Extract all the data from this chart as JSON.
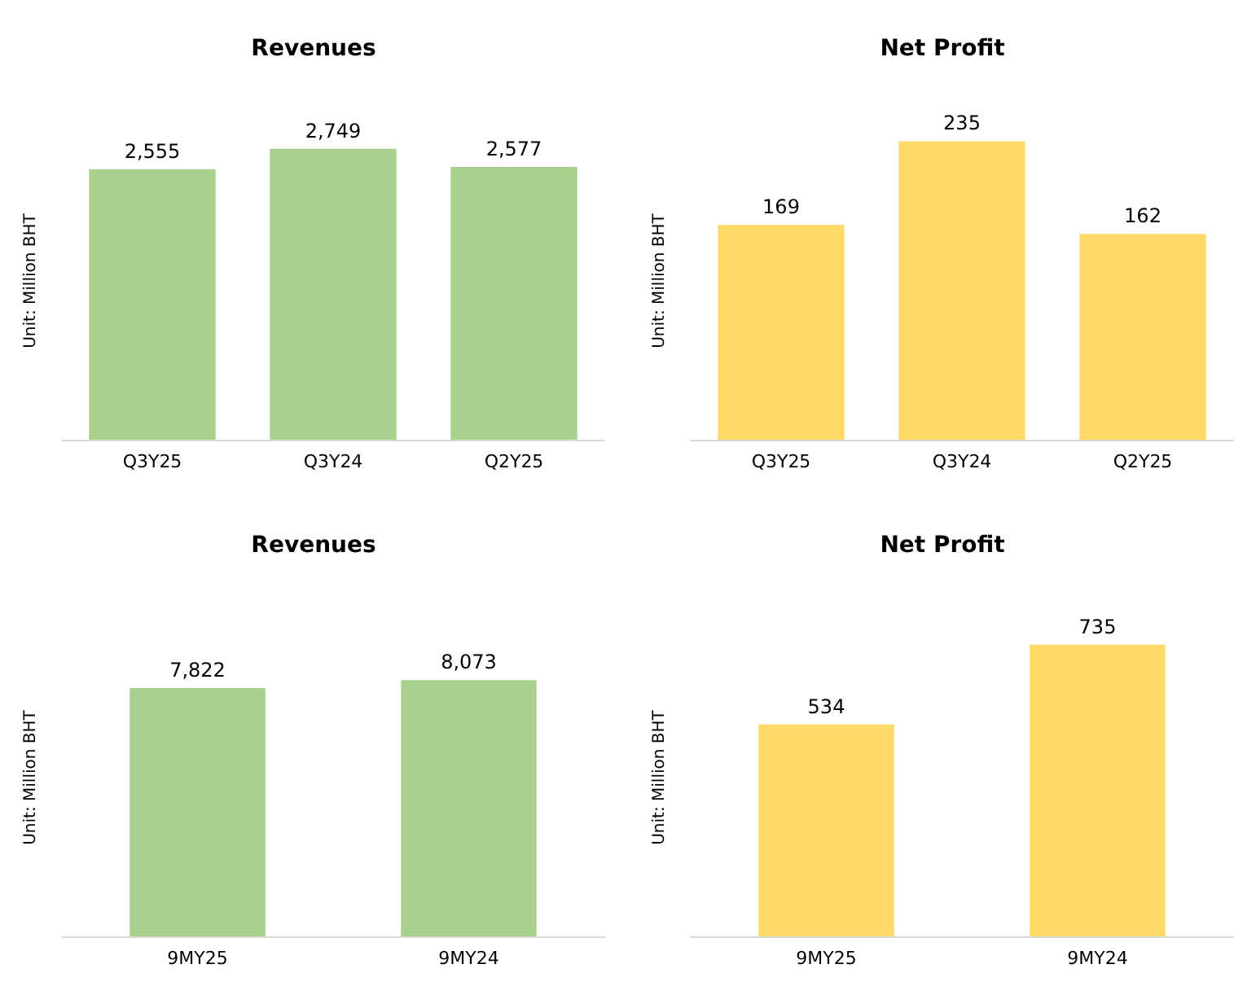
{
  "chart_data": [
    {
      "type": "bar",
      "title": "Revenues",
      "ylabel": "Unit: Million BHT",
      "categories": [
        "Q3Y25",
        "Q3Y24",
        "Q2Y25"
      ],
      "values": [
        2555,
        2749,
        2577
      ],
      "value_labels": [
        "2,555",
        "2,749",
        "2,577"
      ],
      "color": "#a9d18e",
      "grid": false
    },
    {
      "type": "bar",
      "title": "Net Profit",
      "ylabel": "Unit: Million BHT",
      "categories": [
        "Q3Y25",
        "Q3Y24",
        "Q2Y25"
      ],
      "values": [
        169,
        235,
        162
      ],
      "color": "#ffd966",
      "data_labels": true,
      "grid": false
    },
    {
      "type": "bar",
      "title": "Revenues",
      "ylabel": "Unit: Million BHT",
      "categories": [
        "9MY25",
        "9MY24"
      ],
      "values": [
        7822,
        8073
      ],
      "value_labels": [
        "7,822",
        "8,073"
      ],
      "color": "#a9d18e",
      "grid": false
    },
    {
      "type": "bar",
      "title": "Net Profit",
      "ylabel": "Unit: Million BHT",
      "categories": [
        "9MY25",
        "9MY24"
      ],
      "values": [
        534,
        735
      ],
      "color": "#ffd966",
      "data_labels": true,
      "grid": false
    }
  ]
}
